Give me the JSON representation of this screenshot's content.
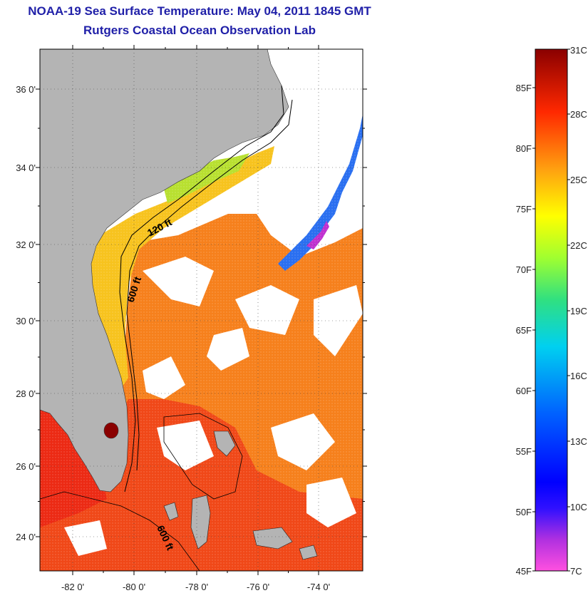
{
  "title": {
    "line1": "NOAA-19 Sea Surface Temperature:  May 04, 2011 1845 GMT",
    "line2": "Rutgers Coastal Ocean Observation Lab"
  },
  "map": {
    "lat_labels": [
      "36 0'",
      "34 0'",
      "32 0'",
      "30 0'",
      "28 0'",
      "26 0'",
      "24 0'"
    ],
    "lon_labels": [
      "-82 0'",
      "-80 0'",
      "-78 0'",
      "-76 0'",
      "-74 0'"
    ],
    "contour_labels": [
      "120 ft",
      "600 ft",
      "600 ft"
    ],
    "colors": {
      "land": "#b4b4b4",
      "cloud": "#ffffff",
      "warm": "#f03010",
      "mid": "#f77a1a"
    }
  },
  "colorbar": {
    "celsius_labels": [
      "31C",
      "28C",
      "25C",
      "22C",
      "19C",
      "16C",
      "13C",
      "10C",
      "7C"
    ],
    "fahrenheit_labels": [
      "85F",
      "80F",
      "75F",
      "70F",
      "65F",
      "60F",
      "55F",
      "50F",
      "45F"
    ]
  }
}
